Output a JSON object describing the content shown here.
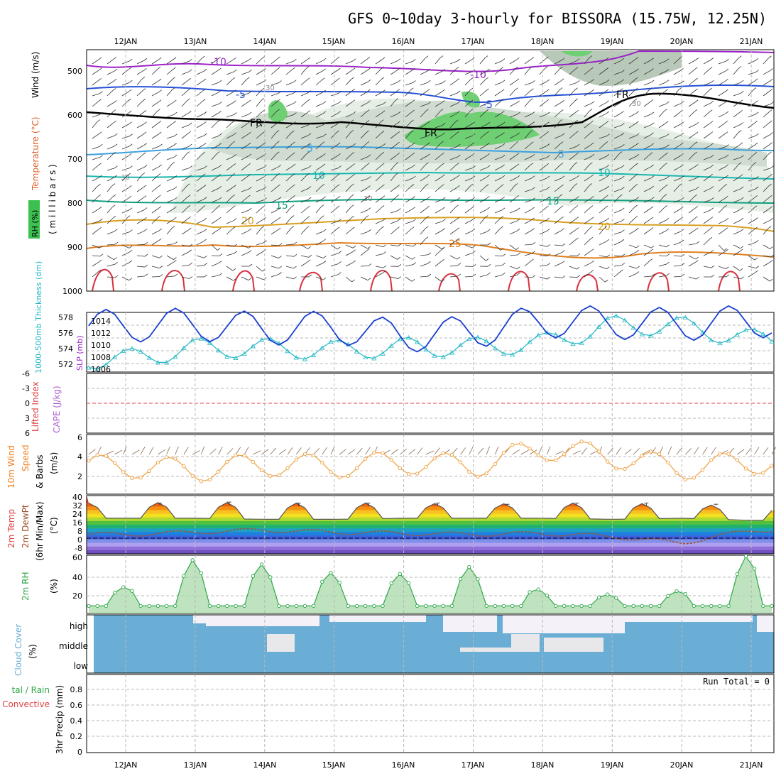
{
  "header": {
    "title": "GFS 0~10day 3-hourly for BISSORA (15.75W, 12.25N)"
  },
  "dates": [
    "12JAN",
    "13JAN",
    "14JAN",
    "15JAN",
    "16JAN",
    "17JAN",
    "18JAN",
    "19JAN",
    "20JAN",
    "21JAN"
  ],
  "panels": {
    "upper": {
      "ylabel_pressure": "( m i l l i b a r s )",
      "ylabel_wind": "Wind (m/s)",
      "ylabel_temp": "Temperature (°C)",
      "ylabel_rh": "RH (%)",
      "pressure_ticks": [
        "500",
        "600",
        "700",
        "800",
        "900",
        "1000"
      ],
      "contour_labels": [
        "-10",
        "-5",
        "FR",
        "5",
        "10",
        "15",
        "20",
        "25",
        "30"
      ]
    },
    "thickness": {
      "ylabel_left": "1000-500mb Thickness (dm)",
      "ylabel_right": "SLP (mb)",
      "left_ticks": [
        "578",
        "576",
        "574",
        "572"
      ],
      "right_ticks": [
        "1014",
        "1012",
        "1010",
        "1008",
        "1006"
      ]
    },
    "cape": {
      "ylabel_left": "Lifted Index",
      "ylabel_right": "CAPE (J/kg)",
      "ticks": [
        "-6",
        "-3",
        "0",
        "3",
        "6"
      ]
    },
    "wind10m": {
      "ylabel_1": "10m Wind",
      "ylabel_2": "Speed",
      "ylabel_3": "& Barbs",
      "ylabel_unit": "(m/s)",
      "ticks": [
        "6",
        "4",
        "2"
      ]
    },
    "temp2m": {
      "ylabel_1": "2m Temp",
      "ylabel_2": "2m DewPt",
      "ylabel_3": "(6hr Min/Max)",
      "ylabel_unit": "(°C)",
      "ticks": [
        "40",
        "32",
        "24",
        "16",
        "8",
        "0",
        "-8"
      ]
    },
    "rh2m": {
      "ylabel": "2m RH",
      "ylabel_unit": "(%)",
      "ticks": [
        "60",
        "40",
        "20"
      ]
    },
    "cloud": {
      "ylabel": "Cloud Cover",
      "ylabel_unit": "(%)",
      "levels": [
        "high",
        "middle",
        "low"
      ]
    },
    "precip": {
      "ylabel_1": "3hr Precip (mm)",
      "ylabel_2": "tal / Rain",
      "ylabel_3": "Convective",
      "ticks": [
        "0.8",
        "0.6",
        "0.4",
        "0.2",
        "0"
      ],
      "run_total": "Run Total = 0"
    }
  },
  "colors": {
    "slp": "#1a3fd0",
    "thickness": "#22b8c4",
    "wind_speed": "#f0a040",
    "rh2m": "#2ea84a",
    "cloud": "#6aaed6",
    "dewpt": "#a0522d",
    "frame": "#000000"
  },
  "chart_data": [
    {
      "type": "line",
      "title": "1000-500mb Thickness / SLP",
      "x": [
        "12JAN",
        "13JAN",
        "14JAN",
        "15JAN",
        "16JAN",
        "17JAN",
        "18JAN",
        "19JAN",
        "20JAN",
        "21JAN"
      ],
      "series": [
        {
          "name": "SLP (mb)",
          "values": [
            1012.2,
            1012.4,
            1011.8,
            1012.0,
            1010.8,
            1011.4,
            1012.8,
            1012.6,
            1012.4,
            1012.8
          ]
        },
        {
          "name": "1000-500mb Thickness (dm)",
          "values": [
            573.3,
            574.4,
            574.4,
            574.2,
            574.5,
            574.5,
            574.9,
            576.7,
            576.6,
            575.3
          ]
        }
      ],
      "ylim_left": [
        572,
        578
      ],
      "ylim_right": [
        1006,
        1014
      ]
    },
    {
      "type": "line",
      "title": "10m Wind Speed",
      "x": [
        "12JAN",
        "13JAN",
        "14JAN",
        "15JAN",
        "16JAN",
        "17JAN",
        "18JAN",
        "19JAN",
        "20JAN",
        "21JAN"
      ],
      "series": [
        {
          "name": "Speed (m/s)",
          "values": [
            2.8,
            2.4,
            3.0,
            2.8,
            3.2,
            2.8,
            4.6,
            3.8,
            2.6,
            3.2
          ]
        }
      ],
      "ylim": [
        0,
        6
      ]
    },
    {
      "type": "line",
      "title": "2m Temp / DewPt",
      "x": [
        "12JAN",
        "13JAN",
        "14JAN",
        "15JAN",
        "16JAN",
        "17JAN",
        "18JAN",
        "19JAN",
        "20JAN",
        "21JAN"
      ],
      "series": [
        {
          "name": "2m Temp max (°C)",
          "values": [
            35,
            36,
            35,
            35,
            35,
            34,
            35,
            35,
            34,
            32
          ]
        },
        {
          "name": "2m Temp min (°C)",
          "values": [
            21,
            21,
            20,
            20,
            21,
            21,
            21,
            20,
            21,
            19
          ]
        },
        {
          "name": "2m DewPt (°C)",
          "values": [
            6,
            8,
            10,
            8,
            7,
            6,
            7,
            4,
            -2,
            10
          ]
        }
      ],
      "ylim": [
        -12,
        42
      ]
    },
    {
      "type": "area",
      "title": "2m RH",
      "x": [
        "12JAN",
        "13JAN",
        "14JAN",
        "15JAN",
        "16JAN",
        "17JAN",
        "18JAN",
        "19JAN",
        "20JAN",
        "21JAN"
      ],
      "series": [
        {
          "name": "2m RH (%)",
          "values": [
            20,
            50,
            44,
            35,
            34,
            42,
            16,
            12,
            16,
            56
          ]
        }
      ],
      "ylim": [
        0,
        62
      ]
    },
    {
      "type": "bar",
      "title": "3hr Precip",
      "x": [
        "12JAN",
        "13JAN",
        "14JAN",
        "15JAN",
        "16JAN",
        "17JAN",
        "18JAN",
        "19JAN",
        "20JAN",
        "21JAN"
      ],
      "series": [
        {
          "name": "3hr Precip (mm)",
          "values": [
            0,
            0,
            0,
            0,
            0,
            0,
            0,
            0,
            0,
            0
          ]
        }
      ],
      "ylim": [
        0,
        1
      ]
    }
  ]
}
